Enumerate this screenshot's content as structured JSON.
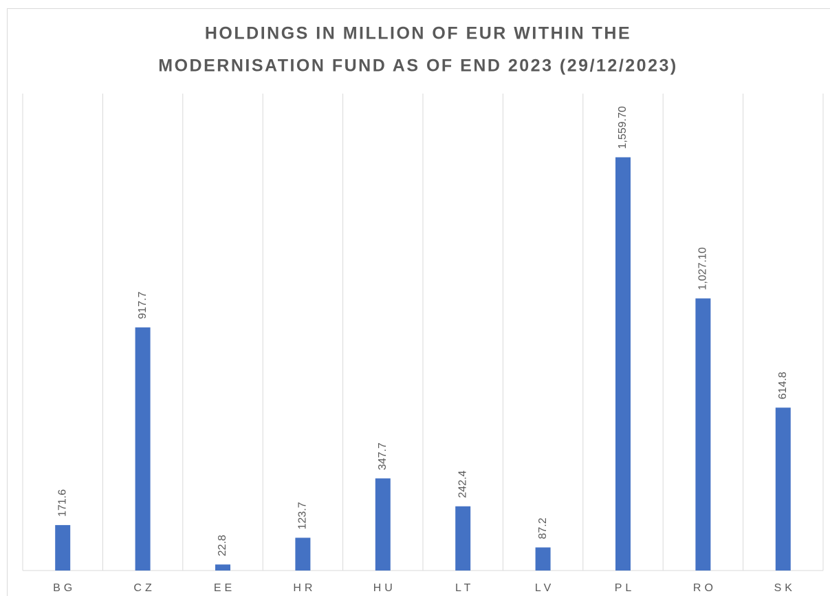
{
  "chart_data": {
    "type": "bar",
    "title": [
      "HOLDINGS IN MILLION OF EUR WITHIN THE",
      "MODERNISATION FUND AS OF END 2023 (29/12/2023)"
    ],
    "categories": [
      "BG",
      "CZ",
      "EE",
      "HR",
      "HU",
      "LT",
      "LV",
      "PL",
      "RO",
      "SK"
    ],
    "values": [
      171.6,
      917.7,
      22.8,
      123.7,
      347.7,
      242.4,
      87.2,
      1559.7,
      1027.1,
      614.8
    ],
    "value_labels": [
      "171.6",
      "917.7",
      "22.8",
      "123.7",
      "347.7",
      "242.4",
      "87.2",
      "1,559.70",
      "1,027.10",
      "614.8"
    ],
    "color": "#4472c4",
    "ylim": [
      0,
      1800
    ]
  }
}
